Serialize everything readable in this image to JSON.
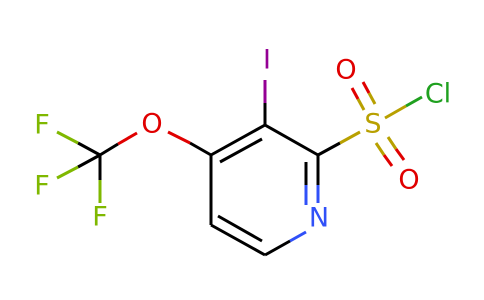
{
  "atoms": [
    {
      "label": "I"
    },
    {
      "label": "O"
    },
    {
      "label": "S"
    },
    {
      "label": "O"
    },
    {
      "label": "O"
    },
    {
      "label": "Cl"
    },
    {
      "label": "N"
    },
    {
      "label": "F"
    },
    {
      "label": "F"
    },
    {
      "label": "F"
    }
  ]
}
